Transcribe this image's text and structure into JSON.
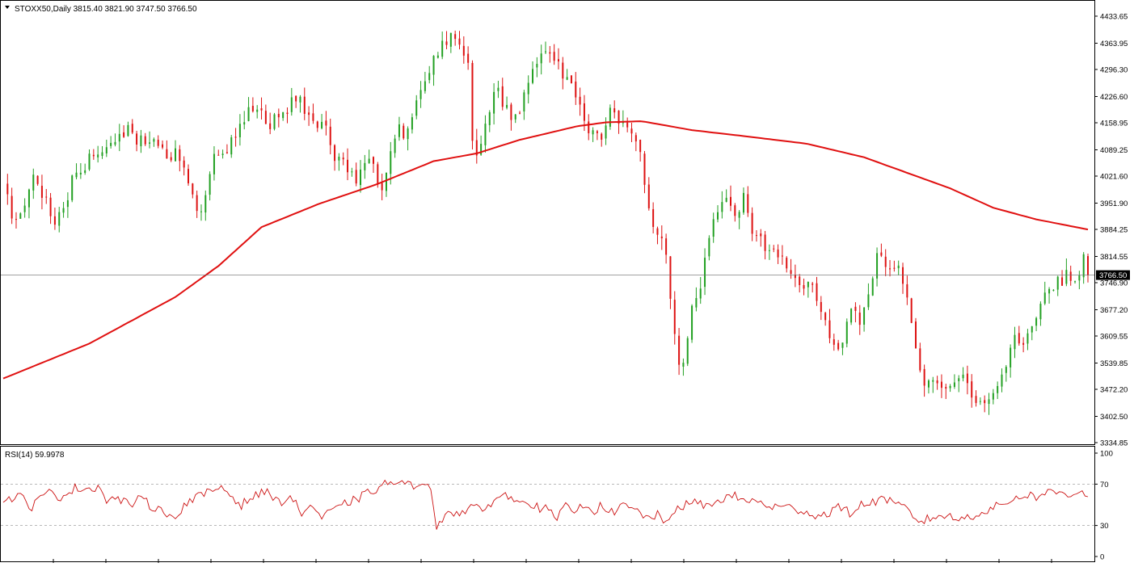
{
  "header": {
    "symbol_line": "STOXX50,Daily  3815.40 3821.90 3747.50 3766.50"
  },
  "rsi_panel": {
    "label": "RSI(14) 59.9978"
  },
  "colors": {
    "bull": "#22a022",
    "bear": "#dd1111",
    "ma": "#e01010",
    "rsi": "#cc1111",
    "grid": "#000000",
    "price_tag_bg": "#000000",
    "price_tag_fg": "#ffffff"
  },
  "chart_data": [
    {
      "type": "candlestick",
      "title": "STOXX50,Daily",
      "ohlc_last": {
        "open": 3815.4,
        "high": 3821.9,
        "low": 3747.5,
        "close": 3766.5
      },
      "y_ticks": [
        "4433.65",
        "4363.95",
        "4296.30",
        "4226.60",
        "4158.95",
        "4089.25",
        "4021.60",
        "3951.90",
        "3884.25",
        "3814.55",
        "3746.90",
        "3677.20",
        "3609.55",
        "3539.85",
        "3472.20",
        "3402.50",
        "3334.85"
      ],
      "ylim": [
        3334.85,
        4433.65
      ],
      "current_price": "3766.50",
      "path": [
        [
          0,
          4000
        ],
        [
          8,
          3900
        ],
        [
          14,
          3940
        ],
        [
          20,
          4020
        ],
        [
          30,
          3960
        ],
        [
          36,
          3880
        ],
        [
          44,
          3960
        ],
        [
          50,
          4030
        ],
        [
          60,
          4060
        ],
        [
          70,
          4090
        ],
        [
          80,
          4110
        ],
        [
          86,
          4150
        ],
        [
          96,
          4110
        ],
        [
          106,
          4120
        ],
        [
          112,
          4080
        ],
        [
          124,
          4070
        ],
        [
          130,
          4010
        ],
        [
          136,
          3940
        ],
        [
          140,
          3960
        ],
        [
          146,
          4060
        ],
        [
          156,
          4090
        ],
        [
          164,
          4150
        ],
        [
          172,
          4210
        ],
        [
          178,
          4180
        ],
        [
          186,
          4160
        ],
        [
          196,
          4190
        ],
        [
          204,
          4230
        ],
        [
          212,
          4180
        ],
        [
          218,
          4140
        ],
        [
          224,
          4160
        ],
        [
          230,
          4080
        ],
        [
          238,
          4040
        ],
        [
          246,
          4020
        ],
        [
          254,
          4060
        ],
        [
          264,
          4000
        ],
        [
          272,
          4130
        ],
        [
          280,
          4140
        ],
        [
          288,
          4200
        ],
        [
          296,
          4280
        ],
        [
          302,
          4340
        ],
        [
          308,
          4370
        ],
        [
          314,
          4390
        ],
        [
          320,
          4360
        ],
        [
          324,
          4300
        ],
        [
          328,
          4060
        ],
        [
          334,
          4130
        ],
        [
          342,
          4250
        ],
        [
          350,
          4200
        ],
        [
          356,
          4150
        ],
        [
          364,
          4240
        ],
        [
          372,
          4330
        ],
        [
          380,
          4340
        ],
        [
          388,
          4300
        ],
        [
          396,
          4250
        ],
        [
          402,
          4200
        ],
        [
          408,
          4140
        ],
        [
          416,
          4120
        ],
        [
          424,
          4190
        ],
        [
          432,
          4160
        ],
        [
          440,
          4130
        ],
        [
          446,
          4040
        ],
        [
          452,
          3900
        ],
        [
          458,
          3880
        ],
        [
          464,
          3760
        ],
        [
          468,
          3600
        ],
        [
          472,
          3520
        ],
        [
          476,
          3560
        ],
        [
          480,
          3680
        ],
        [
          486,
          3720
        ],
        [
          494,
          3920
        ],
        [
          502,
          3960
        ],
        [
          508,
          3920
        ],
        [
          516,
          3960
        ],
        [
          522,
          3880
        ],
        [
          528,
          3850
        ],
        [
          534,
          3820
        ],
        [
          542,
          3820
        ],
        [
          550,
          3780
        ],
        [
          556,
          3720
        ],
        [
          562,
          3760
        ],
        [
          568,
          3700
        ],
        [
          574,
          3650
        ],
        [
          580,
          3560
        ],
        [
          586,
          3610
        ],
        [
          592,
          3700
        ],
        [
          598,
          3650
        ],
        [
          604,
          3730
        ],
        [
          610,
          3820
        ],
        [
          616,
          3780
        ],
        [
          622,
          3800
        ],
        [
          628,
          3740
        ],
        [
          634,
          3620
        ],
        [
          640,
          3500
        ],
        [
          646,
          3470
        ],
        [
          652,
          3510
        ],
        [
          658,
          3460
        ],
        [
          664,
          3500
        ],
        [
          670,
          3510
        ],
        [
          676,
          3450
        ],
        [
          682,
          3420
        ],
        [
          688,
          3460
        ],
        [
          694,
          3480
        ],
        [
          700,
          3560
        ],
        [
          706,
          3620
        ],
        [
          712,
          3590
        ],
        [
          718,
          3620
        ],
        [
          724,
          3700
        ],
        [
          730,
          3720
        ],
        [
          736,
          3750
        ],
        [
          742,
          3770
        ],
        [
          748,
          3760
        ],
        [
          752,
          3800
        ],
        [
          756,
          3815
        ]
      ],
      "moving_average": [
        [
          0,
          3500
        ],
        [
          60,
          3590
        ],
        [
          120,
          3710
        ],
        [
          150,
          3790
        ],
        [
          180,
          3890
        ],
        [
          220,
          3950
        ],
        [
          260,
          4000
        ],
        [
          300,
          4060
        ],
        [
          330,
          4080
        ],
        [
          360,
          4115
        ],
        [
          400,
          4150
        ],
        [
          420,
          4160
        ],
        [
          445,
          4163
        ],
        [
          480,
          4140
        ],
        [
          520,
          4123
        ],
        [
          560,
          4105
        ],
        [
          600,
          4070
        ],
        [
          630,
          4030
        ],
        [
          660,
          3990
        ],
        [
          690,
          3940
        ],
        [
          720,
          3910
        ],
        [
          756,
          3884
        ]
      ]
    },
    {
      "type": "line",
      "title": "RSI(14) 59.9978",
      "y_ticks": [
        "100",
        "70",
        "30",
        "0"
      ],
      "levels": [
        70,
        30
      ],
      "ylim": [
        0,
        100
      ],
      "path": [
        [
          0,
          55
        ],
        [
          12,
          58
        ],
        [
          20,
          48
        ],
        [
          30,
          62
        ],
        [
          40,
          58
        ],
        [
          50,
          66
        ],
        [
          60,
          66
        ],
        [
          66,
          68
        ],
        [
          72,
          55
        ],
        [
          80,
          56
        ],
        [
          88,
          50
        ],
        [
          96,
          56
        ],
        [
          104,
          48
        ],
        [
          112,
          46
        ],
        [
          118,
          35
        ],
        [
          126,
          50
        ],
        [
          136,
          58
        ],
        [
          144,
          62
        ],
        [
          152,
          68
        ],
        [
          158,
          60
        ],
        [
          166,
          50
        ],
        [
          176,
          60
        ],
        [
          186,
          62
        ],
        [
          192,
          52
        ],
        [
          200,
          58
        ],
        [
          208,
          42
        ],
        [
          214,
          50
        ],
        [
          222,
          38
        ],
        [
          230,
          44
        ],
        [
          240,
          52
        ],
        [
          250,
          58
        ],
        [
          258,
          64
        ],
        [
          266,
          70
        ],
        [
          272,
          72
        ],
        [
          278,
          70
        ],
        [
          284,
          68
        ],
        [
          292,
          74
        ],
        [
          298,
          62
        ],
        [
          302,
          28
        ],
        [
          310,
          46
        ],
        [
          318,
          40
        ],
        [
          326,
          50
        ],
        [
          334,
          42
        ],
        [
          342,
          56
        ],
        [
          350,
          60
        ],
        [
          356,
          52
        ],
        [
          362,
          58
        ],
        [
          370,
          48
        ],
        [
          378,
          46
        ],
        [
          386,
          36
        ],
        [
          392,
          48
        ],
        [
          400,
          44
        ],
        [
          406,
          52
        ],
        [
          412,
          44
        ],
        [
          418,
          50
        ],
        [
          426,
          40
        ],
        [
          432,
          50
        ],
        [
          440,
          45
        ],
        [
          448,
          38
        ],
        [
          456,
          40
        ],
        [
          462,
          30
        ],
        [
          468,
          46
        ],
        [
          476,
          50
        ],
        [
          484,
          52
        ],
        [
          492,
          48
        ],
        [
          500,
          56
        ],
        [
          510,
          58
        ],
        [
          518,
          54
        ],
        [
          528,
          52
        ],
        [
          536,
          48
        ],
        [
          544,
          48
        ],
        [
          552,
          46
        ],
        [
          560,
          44
        ],
        [
          566,
          38
        ],
        [
          574,
          42
        ],
        [
          582,
          48
        ],
        [
          590,
          42
        ],
        [
          598,
          50
        ],
        [
          606,
          52
        ],
        [
          614,
          58
        ],
        [
          620,
          50
        ],
        [
          628,
          48
        ],
        [
          634,
          38
        ],
        [
          640,
          34
        ],
        [
          648,
          38
        ],
        [
          656,
          40
        ],
        [
          664,
          36
        ],
        [
          672,
          38
        ],
        [
          680,
          42
        ],
        [
          688,
          46
        ],
        [
          696,
          50
        ],
        [
          704,
          56
        ],
        [
          712,
          60
        ],
        [
          720,
          58
        ],
        [
          728,
          62
        ],
        [
          736,
          62
        ],
        [
          744,
          60
        ],
        [
          750,
          64
        ],
        [
          756,
          60
        ]
      ]
    }
  ]
}
